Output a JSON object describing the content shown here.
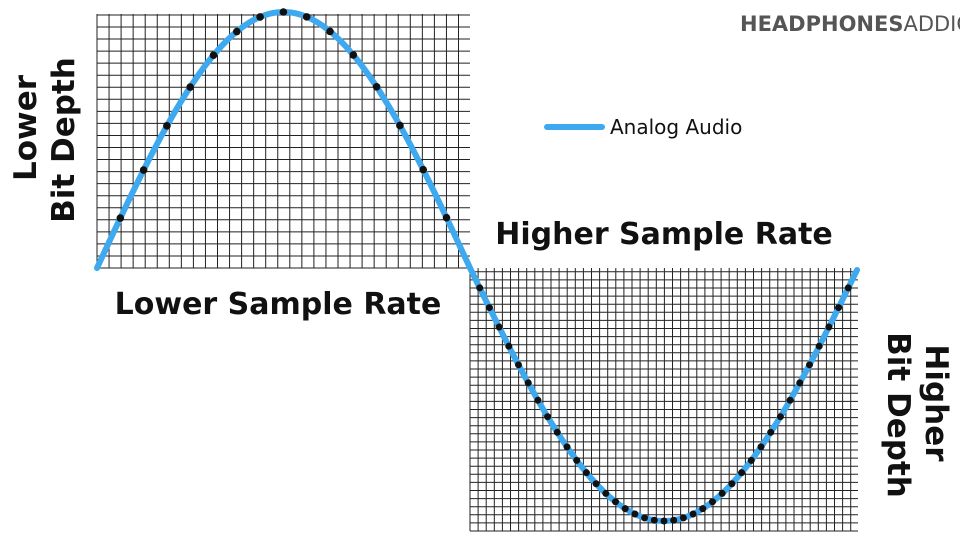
{
  "brand": {
    "bold": "HEADPHONES",
    "light": "ADDICT"
  },
  "legend": {
    "label": "Analog Audio"
  },
  "left_panel": {
    "axis_label_line1": "Lower",
    "axis_label_line2": "Bit Depth",
    "caption": "Lower Sample Rate"
  },
  "right_panel": {
    "axis_label_line1": "Higher",
    "axis_label_line2": "Bit Depth",
    "caption": "Higher Sample Rate"
  }
}
